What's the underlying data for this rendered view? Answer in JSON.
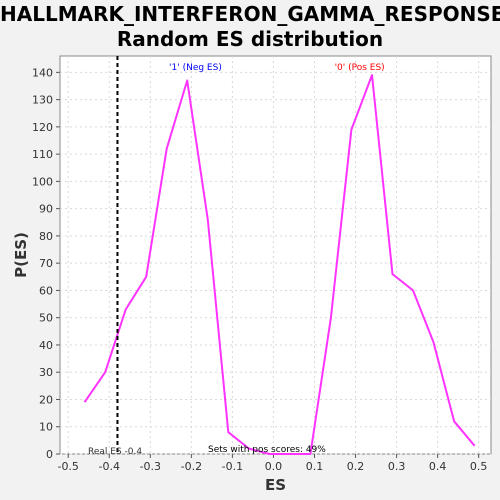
{
  "title_line1": "HALLMARK_INTERFERON_GAMMA_RESPONSE:",
  "title_line2": "Random ES distribution",
  "chart_data": {
    "type": "line",
    "title": "HALLMARK_INTERFERON_GAMMA_RESPONSE: Random ES distribution",
    "xlabel": "ES",
    "ylabel": "P(ES)",
    "xlim": [
      -0.52,
      0.53
    ],
    "ylim": [
      0,
      146
    ],
    "xticks": [
      -0.5,
      -0.4,
      -0.3,
      -0.2,
      -0.1,
      0.0,
      0.1,
      0.2,
      0.3,
      0.4,
      0.5
    ],
    "xtick_labels": [
      "-0.5",
      "-0.4",
      "-0.3",
      "-0.2",
      "-0.1",
      "0.0",
      "0.1",
      "0.2",
      "0.3",
      "0.4",
      "0.5"
    ],
    "yticks": [
      0,
      10,
      20,
      30,
      40,
      50,
      60,
      70,
      80,
      90,
      100,
      110,
      120,
      130,
      140
    ],
    "ytick_labels": [
      "0",
      "10",
      "20",
      "30",
      "40",
      "50",
      "60",
      "70",
      "80",
      "90",
      "100",
      "110",
      "120",
      "130",
      "140"
    ],
    "grid": true,
    "line_color": "#ff33ff",
    "real_es_line_color": "#000000",
    "neg_label_color": "#0000ff",
    "pos_label_color": "#ff0000",
    "series": [
      {
        "x": [
          -0.46,
          -0.41,
          -0.36,
          -0.31,
          -0.26,
          -0.21,
          -0.16,
          -0.11,
          -0.06,
          -0.01,
          0.04,
          0.09,
          0.14,
          0.19,
          0.24,
          0.29,
          0.34,
          0.39,
          0.44,
          0.49
        ],
        "y": [
          19,
          30,
          53,
          65,
          112,
          137,
          86,
          8,
          2,
          0,
          0,
          0,
          50,
          119,
          139,
          66,
          60,
          41,
          12,
          3
        ]
      }
    ],
    "real_es": -0.38,
    "annotations": {
      "neg_label": "'1' (Neg ES)",
      "pos_label": "'0' (Pos ES)",
      "real_es_text": "Real ES -0.4",
      "pos_scores_text": "Sets with pos scores: 49%"
    }
  }
}
